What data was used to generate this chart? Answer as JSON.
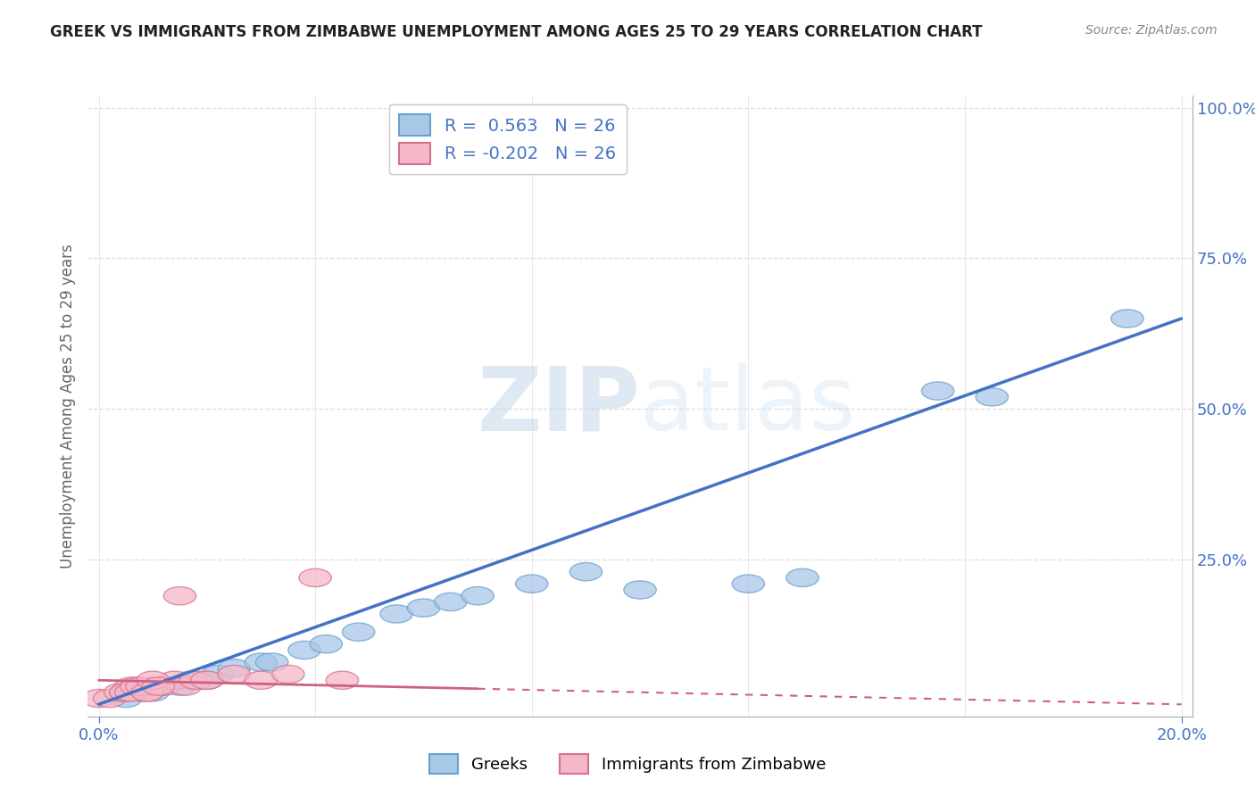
{
  "title": "GREEK VS IMMIGRANTS FROM ZIMBABWE UNEMPLOYMENT AMONG AGES 25 TO 29 YEARS CORRELATION CHART",
  "source": "Source: ZipAtlas.com",
  "ylabel": "Unemployment Among Ages 25 to 29 years",
  "x_min": 0.0,
  "x_max": 0.2,
  "y_min": 0.0,
  "y_max": 1.0,
  "y_tick_labels": [
    "25.0%",
    "50.0%",
    "75.0%",
    "100.0%"
  ],
  "y_ticks": [
    0.25,
    0.5,
    0.75,
    1.0
  ],
  "x_tick_labels": [
    "0.0%",
    "20.0%"
  ],
  "x_ticks": [
    0.0,
    0.2
  ],
  "greek_color": "#a8c8e8",
  "greek_edge_color": "#6aa0cc",
  "greek_trend_color": "#4472c4",
  "zimb_color": "#f4b8c8",
  "zimb_edge_color": "#d87090",
  "zimb_trend_color": "#d06080",
  "R_greek": 0.563,
  "N_greek": 26,
  "R_zimb": -0.202,
  "N_zimb": 26,
  "legend_label_greek": "Greeks",
  "legend_label_zimb": "Immigrants from Zimbabwe",
  "greek_x": [
    0.005,
    0.008,
    0.01,
    0.012,
    0.015,
    0.017,
    0.02,
    0.022,
    0.025,
    0.03,
    0.032,
    0.038,
    0.042,
    0.048,
    0.055,
    0.06,
    0.065,
    0.07,
    0.08,
    0.09,
    0.1,
    0.12,
    0.13,
    0.155,
    0.165,
    0.19
  ],
  "greek_y": [
    0.02,
    0.03,
    0.03,
    0.04,
    0.04,
    0.05,
    0.05,
    0.06,
    0.07,
    0.08,
    0.08,
    0.1,
    0.11,
    0.13,
    0.16,
    0.17,
    0.18,
    0.19,
    0.21,
    0.23,
    0.2,
    0.21,
    0.22,
    0.53,
    0.52,
    0.65
  ],
  "zimb_x": [
    0.0,
    0.002,
    0.004,
    0.005,
    0.006,
    0.008,
    0.009,
    0.01,
    0.012,
    0.014,
    0.016,
    0.018,
    0.02,
    0.025,
    0.03,
    0.035,
    0.04,
    0.045,
    0.005,
    0.006,
    0.007,
    0.008,
    0.009,
    0.01,
    0.011,
    0.015
  ],
  "zimb_y": [
    0.02,
    0.02,
    0.03,
    0.03,
    0.04,
    0.03,
    0.03,
    0.04,
    0.04,
    0.05,
    0.04,
    0.05,
    0.05,
    0.06,
    0.05,
    0.06,
    0.22,
    0.05,
    0.03,
    0.03,
    0.04,
    0.04,
    0.03,
    0.05,
    0.04,
    0.19
  ],
  "greek_trend_x": [
    0.0,
    0.2
  ],
  "greek_trend_y": [
    0.01,
    0.65
  ],
  "zimb_trend_x": [
    0.0,
    0.2
  ],
  "zimb_trend_y": [
    0.05,
    0.01
  ],
  "bg_color": "#ffffff",
  "grid_color": "#dddddd",
  "tick_color": "#4472c4",
  "ylabel_color": "#666666",
  "title_color": "#222222",
  "source_color": "#888888"
}
